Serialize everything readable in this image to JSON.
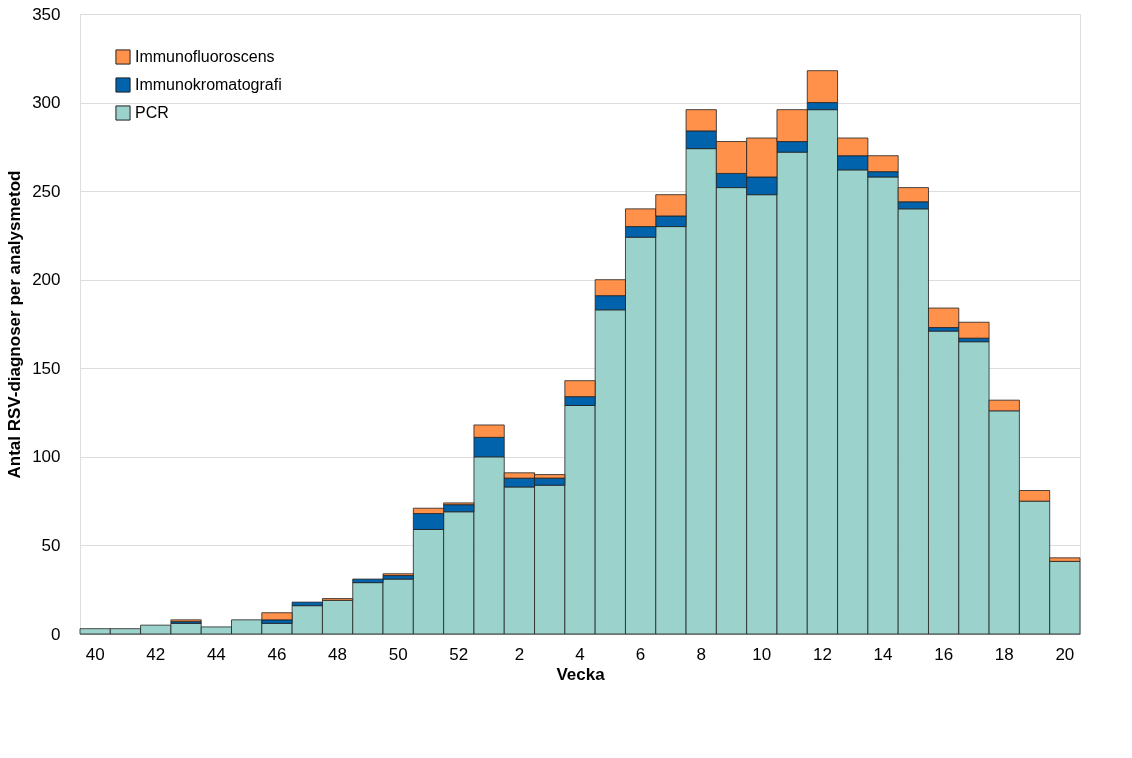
{
  "chart_data": {
    "type": "bar",
    "stacked": true,
    "xlabel": "Vecka",
    "ylabel": "Antal RSV-diagnoser per analysmetod",
    "categories": [
      "40",
      null,
      "42",
      null,
      "44",
      null,
      "46",
      null,
      "48",
      null,
      "50",
      null,
      "52",
      null,
      "2",
      null,
      "4",
      null,
      "6",
      null,
      "8",
      null,
      "10",
      null,
      "12",
      null,
      "14",
      null,
      "16",
      null,
      "18",
      null,
      "20"
    ],
    "series": [
      {
        "name": "PCR",
        "color": "#9bd3cc",
        "values": [
          3,
          3,
          5,
          6,
          4,
          8,
          6,
          16,
          19,
          29,
          31,
          59,
          69,
          100,
          83,
          84,
          129,
          183,
          224,
          230,
          274,
          252,
          248,
          272,
          296,
          262,
          258,
          240,
          171,
          165,
          126,
          75,
          41
        ]
      },
      {
        "name": "Immunokromatografi",
        "color": "#0063ac",
        "values": [
          0,
          0,
          0,
          1,
          0,
          0,
          2,
          2,
          0,
          2,
          2,
          9,
          4,
          11,
          5,
          4,
          5,
          8,
          6,
          6,
          10,
          8,
          10,
          6,
          4,
          8,
          3,
          4,
          2,
          2,
          0,
          0,
          0
        ]
      },
      {
        "name": "Immunofluoroscens",
        "color": "#ff914b",
        "values": [
          0,
          0,
          0,
          1,
          0,
          0,
          4,
          0,
          1,
          0,
          1,
          3,
          1,
          7,
          3,
          2,
          9,
          9,
          10,
          12,
          12,
          18,
          22,
          18,
          18,
          10,
          9,
          8,
          11,
          9,
          6,
          6,
          2
        ]
      }
    ],
    "ylim": [
      0,
      350
    ],
    "yticks": [
      0,
      50,
      100,
      150,
      200,
      250,
      300,
      350
    ],
    "grid": "y",
    "legend": "top left"
  }
}
